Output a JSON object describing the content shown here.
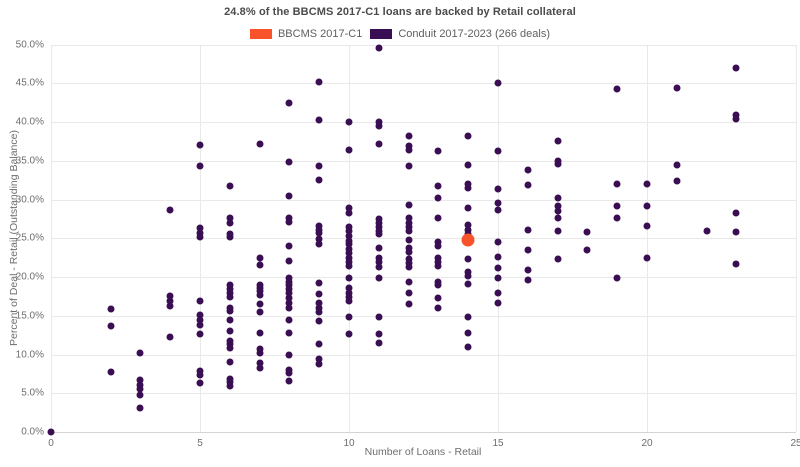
{
  "title": "24.8% of the BBCMS 2017-C1 loans are backed by Retail collateral",
  "legend": [
    {
      "label": "BBCMS 2017-C1",
      "color": "#f8532b"
    },
    {
      "label": "Conduit 2017-2023 (266 deals)",
      "color": "#3a0e52"
    }
  ],
  "chart_data": {
    "type": "scatter",
    "title": "24.8% of the BBCMS 2017-C1 loans are backed by Retail collateral",
    "xlabel": "Number of Loans - Retail",
    "ylabel": "Percent of Deal - Retail (Outstanding Balance)",
    "xlim": [
      0,
      25
    ],
    "ylim_pct": [
      0,
      50
    ],
    "grid": true,
    "legend_position": "top-center",
    "x_ticks": [
      0,
      5,
      10,
      15,
      20,
      25
    ],
    "x_tick_labels": [
      "0",
      "5",
      "10",
      "15",
      "20",
      "25"
    ],
    "y_ticks_pct": [
      0,
      5,
      10,
      15,
      20,
      25,
      30,
      35,
      40,
      45,
      50
    ],
    "y_tick_labels": [
      "0.0%",
      "5.0%",
      "10.0%",
      "15.0%",
      "20.0%",
      "25.0%",
      "30.0%",
      "35.0%",
      "40.0%",
      "45.0%",
      "50.0%"
    ],
    "series": [
      {
        "name": "Conduit 2017-2023 (266 deals)",
        "color": "#3a0e52",
        "marker_px": 7,
        "points": [
          [
            0,
            0.0
          ],
          [
            2,
            15.9
          ],
          [
            2,
            13.7
          ],
          [
            2,
            7.8
          ],
          [
            3,
            10.2
          ],
          [
            3,
            6.7
          ],
          [
            3,
            6.1
          ],
          [
            3,
            5.5
          ],
          [
            3,
            4.8
          ],
          [
            3,
            3.1
          ],
          [
            4,
            28.6
          ],
          [
            4,
            17.5
          ],
          [
            4,
            16.9
          ],
          [
            4,
            16.3
          ],
          [
            4,
            12.2
          ],
          [
            5,
            37.0
          ],
          [
            5,
            34.3
          ],
          [
            5,
            26.3
          ],
          [
            5,
            25.7
          ],
          [
            5,
            25.1
          ],
          [
            5,
            16.9
          ],
          [
            5,
            15.1
          ],
          [
            5,
            14.4
          ],
          [
            5,
            13.8
          ],
          [
            5,
            12.7
          ],
          [
            5,
            7.9
          ],
          [
            5,
            7.4
          ],
          [
            5,
            6.3
          ],
          [
            6,
            31.8
          ],
          [
            6,
            27.6
          ],
          [
            6,
            27.0
          ],
          [
            6,
            25.6
          ],
          [
            6,
            25.1
          ],
          [
            6,
            19.0
          ],
          [
            6,
            18.5
          ],
          [
            6,
            17.9
          ],
          [
            6,
            17.4
          ],
          [
            6,
            16.0
          ],
          [
            6,
            15.6
          ],
          [
            6,
            14.5
          ],
          [
            6,
            13.0
          ],
          [
            6,
            11.7
          ],
          [
            6,
            11.3
          ],
          [
            6,
            10.9
          ],
          [
            6,
            9.0
          ],
          [
            6,
            6.9
          ],
          [
            6,
            6.4
          ],
          [
            6,
            5.9
          ],
          [
            7,
            37.1
          ],
          [
            7,
            22.4
          ],
          [
            7,
            21.5
          ],
          [
            7,
            19.0
          ],
          [
            7,
            18.6
          ],
          [
            7,
            18.2
          ],
          [
            7,
            17.7
          ],
          [
            7,
            16.5
          ],
          [
            7,
            15.5
          ],
          [
            7,
            12.8
          ],
          [
            7,
            10.7
          ],
          [
            7,
            10.2
          ],
          [
            7,
            8.9
          ],
          [
            7,
            8.3
          ],
          [
            8,
            42.4
          ],
          [
            8,
            34.8
          ],
          [
            8,
            30.4
          ],
          [
            8,
            27.6
          ],
          [
            8,
            27.1
          ],
          [
            8,
            24.0
          ],
          [
            8,
            22.1
          ],
          [
            8,
            19.9
          ],
          [
            8,
            19.4
          ],
          [
            8,
            19.0
          ],
          [
            8,
            18.4
          ],
          [
            8,
            17.9
          ],
          [
            8,
            17.3
          ],
          [
            8,
            16.6
          ],
          [
            8,
            16.0
          ],
          [
            8,
            14.4
          ],
          [
            8,
            12.8
          ],
          [
            8,
            10.0
          ],
          [
            8,
            8.0
          ],
          [
            8,
            7.6
          ],
          [
            8,
            6.6
          ],
          [
            9,
            45.2
          ],
          [
            9,
            40.2
          ],
          [
            9,
            34.3
          ],
          [
            9,
            32.5
          ],
          [
            9,
            26.6
          ],
          [
            9,
            26.1
          ],
          [
            9,
            25.7
          ],
          [
            9,
            24.9
          ],
          [
            9,
            24.3
          ],
          [
            9,
            19.2
          ],
          [
            9,
            17.8
          ],
          [
            9,
            16.6
          ],
          [
            9,
            16.0
          ],
          [
            9,
            15.5
          ],
          [
            9,
            14.3
          ],
          [
            9,
            11.3
          ],
          [
            9,
            9.4
          ],
          [
            9,
            8.8
          ],
          [
            10,
            40.0
          ],
          [
            10,
            36.4
          ],
          [
            10,
            28.9
          ],
          [
            10,
            28.3
          ],
          [
            10,
            26.5
          ],
          [
            10,
            25.9
          ],
          [
            10,
            25.3
          ],
          [
            10,
            24.7
          ],
          [
            10,
            24.2
          ],
          [
            10,
            23.6
          ],
          [
            10,
            23.1
          ],
          [
            10,
            22.5
          ],
          [
            10,
            22.0
          ],
          [
            10,
            21.4
          ],
          [
            10,
            19.9
          ],
          [
            10,
            18.6
          ],
          [
            10,
            18.0
          ],
          [
            10,
            17.4
          ],
          [
            10,
            16.9
          ],
          [
            10,
            14.9
          ],
          [
            10,
            12.7
          ],
          [
            11,
            49.5
          ],
          [
            11,
            40.0
          ],
          [
            11,
            39.5
          ],
          [
            11,
            37.1
          ],
          [
            11,
            27.5
          ],
          [
            11,
            27.0
          ],
          [
            11,
            26.5
          ],
          [
            11,
            26.0
          ],
          [
            11,
            25.5
          ],
          [
            11,
            23.8
          ],
          [
            11,
            22.5
          ],
          [
            11,
            21.9
          ],
          [
            11,
            21.3
          ],
          [
            11,
            19.9
          ],
          [
            11,
            14.9
          ],
          [
            11,
            12.7
          ],
          [
            11,
            11.5
          ],
          [
            12,
            38.2
          ],
          [
            12,
            36.9
          ],
          [
            12,
            36.4
          ],
          [
            12,
            34.3
          ],
          [
            12,
            29.3
          ],
          [
            12,
            27.6
          ],
          [
            12,
            27.0
          ],
          [
            12,
            26.5
          ],
          [
            12,
            26.0
          ],
          [
            12,
            24.8
          ],
          [
            12,
            23.7
          ],
          [
            12,
            23.2
          ],
          [
            12,
            22.3
          ],
          [
            12,
            21.8
          ],
          [
            12,
            21.3
          ],
          [
            12,
            19.3
          ],
          [
            12,
            17.9
          ],
          [
            12,
            16.5
          ],
          [
            13,
            36.3
          ],
          [
            13,
            31.7
          ],
          [
            13,
            30.2
          ],
          [
            13,
            27.6
          ],
          [
            13,
            24.5
          ],
          [
            13,
            24.0
          ],
          [
            13,
            22.4
          ],
          [
            13,
            21.9
          ],
          [
            13,
            21.4
          ],
          [
            13,
            19.4
          ],
          [
            13,
            19.0
          ],
          [
            13,
            17.3
          ],
          [
            13,
            16.0
          ],
          [
            14,
            38.2
          ],
          [
            14,
            34.4
          ],
          [
            14,
            32.0
          ],
          [
            14,
            31.5
          ],
          [
            14,
            28.9
          ],
          [
            14,
            26.7
          ],
          [
            14,
            26.1
          ],
          [
            14,
            25.6
          ],
          [
            14,
            22.3
          ],
          [
            14,
            20.6
          ],
          [
            14,
            20.1
          ],
          [
            14,
            19.1
          ],
          [
            14,
            14.9
          ],
          [
            14,
            12.8
          ],
          [
            14,
            11.0
          ],
          [
            15,
            45.0
          ],
          [
            15,
            36.2
          ],
          [
            15,
            31.3
          ],
          [
            15,
            29.5
          ],
          [
            15,
            28.7
          ],
          [
            15,
            24.5
          ],
          [
            15,
            22.6
          ],
          [
            15,
            21.2
          ],
          [
            15,
            19.9
          ],
          [
            15,
            18.0
          ],
          [
            15,
            16.6
          ],
          [
            16,
            33.8
          ],
          [
            16,
            31.9
          ],
          [
            16,
            26.1
          ],
          [
            16,
            23.5
          ],
          [
            16,
            20.9
          ],
          [
            16,
            19.6
          ],
          [
            17,
            37.5
          ],
          [
            17,
            35.0
          ],
          [
            17,
            34.6
          ],
          [
            17,
            30.2
          ],
          [
            17,
            29.1
          ],
          [
            17,
            28.5
          ],
          [
            17,
            27.6
          ],
          [
            17,
            25.9
          ],
          [
            17,
            22.3
          ],
          [
            18,
            25.8
          ],
          [
            18,
            23.5
          ],
          [
            19,
            44.2
          ],
          [
            19,
            32.0
          ],
          [
            19,
            29.1
          ],
          [
            19,
            27.6
          ],
          [
            19,
            19.9
          ],
          [
            20,
            32.0
          ],
          [
            20,
            29.1
          ],
          [
            20,
            26.6
          ],
          [
            20,
            22.5
          ],
          [
            21,
            44.4
          ],
          [
            21,
            34.5
          ],
          [
            21,
            32.4
          ],
          [
            22,
            26.0
          ],
          [
            23,
            47.0
          ],
          [
            23,
            40.9
          ],
          [
            23,
            40.4
          ],
          [
            23,
            28.3
          ],
          [
            23,
            25.8
          ],
          [
            23,
            21.7
          ]
        ]
      },
      {
        "name": "BBCMS 2017-C1",
        "color": "#f8532b",
        "marker_px": 13,
        "points": [
          [
            14,
            24.8
          ]
        ]
      }
    ]
  }
}
